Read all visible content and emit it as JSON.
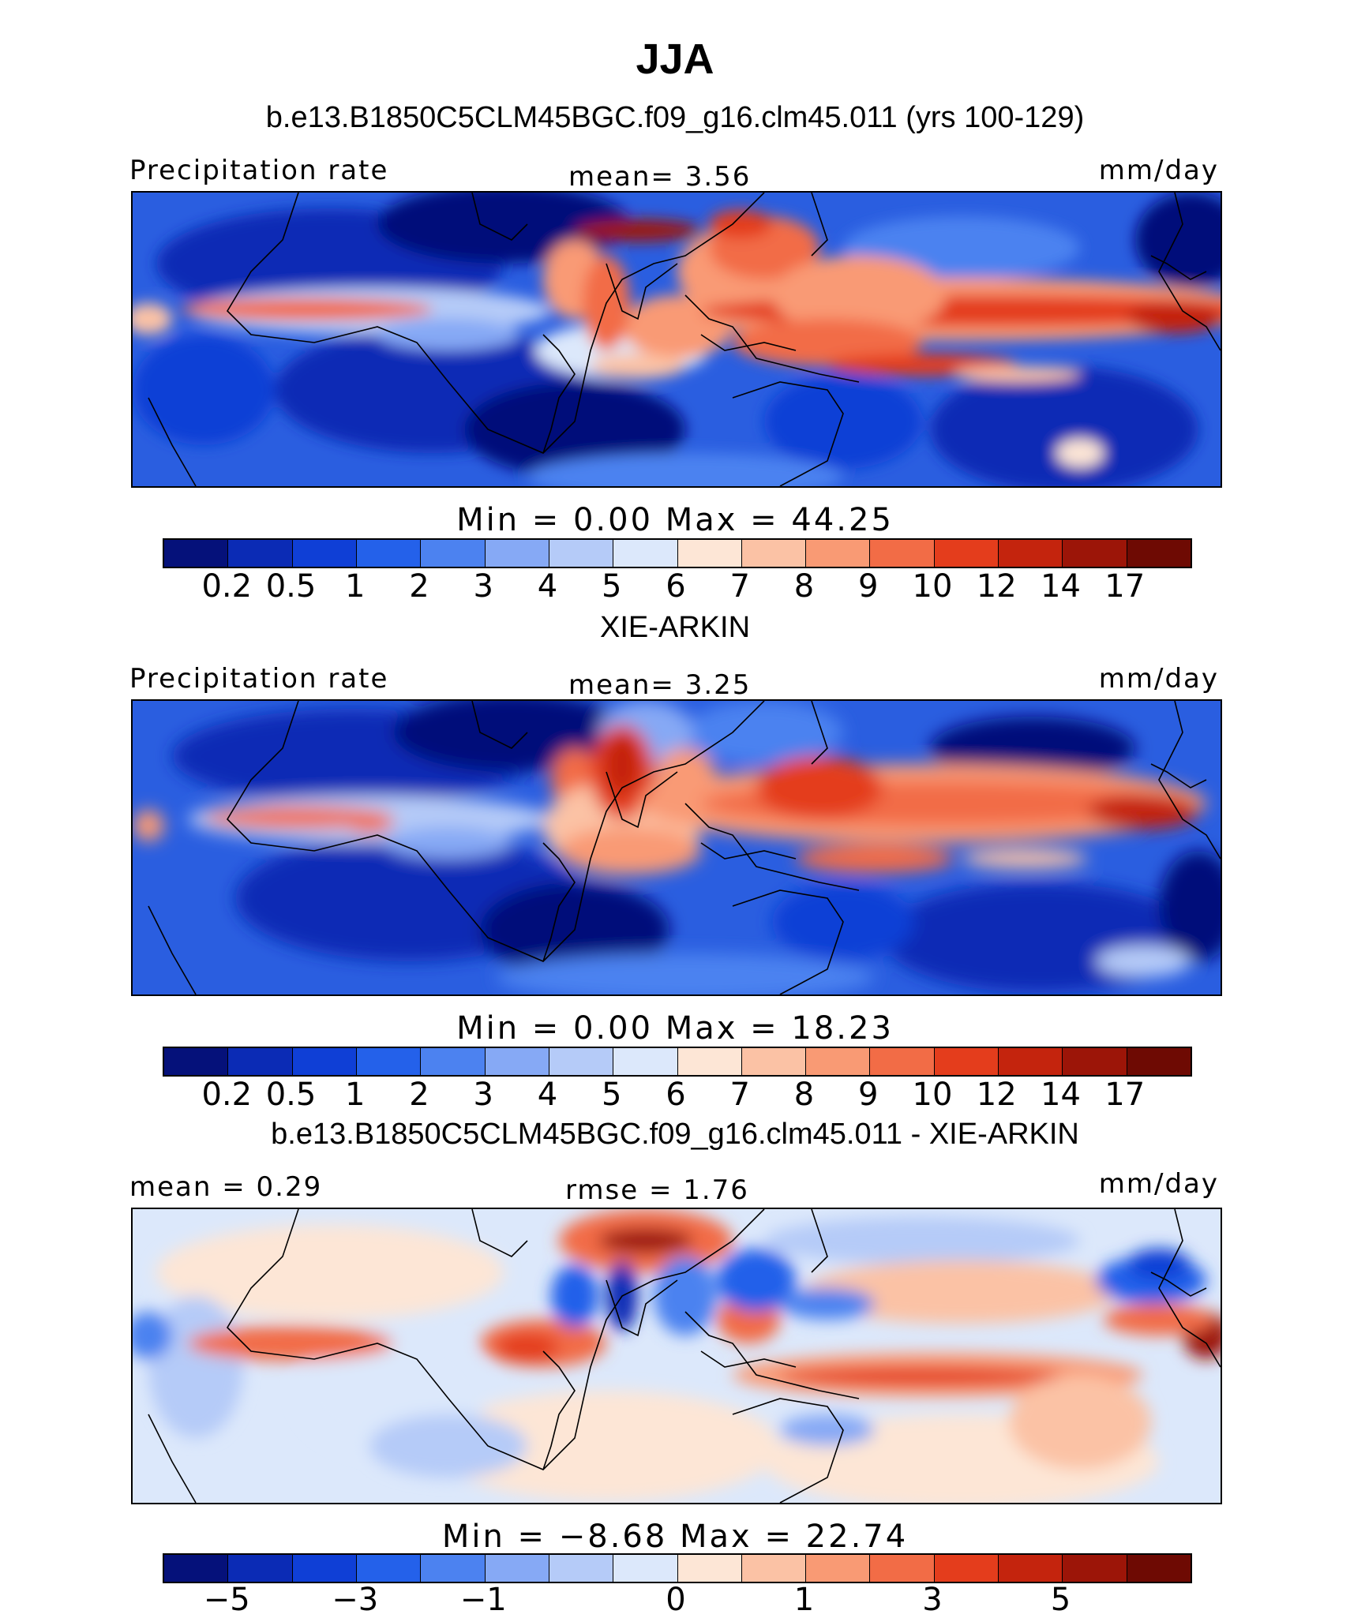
{
  "title": "JJA",
  "subtitle_model": "b.e13.B1850C5CLM45BGC.f09_g16.clm45.011 (yrs 100-129)",
  "panels": [
    {
      "left_label": "Precipitation rate",
      "center_label": "mean=    3.56",
      "right_label": "mm/day",
      "minmax": "Min  =     0.00  Max  =    44.25"
    },
    {
      "title": "XIE-ARKIN",
      "left_label": "Precipitation rate",
      "center_label": "mean=    3.25",
      "right_label": "mm/day",
      "minmax": "Min  =     0.00  Max  =    18.23"
    },
    {
      "title": "b.e13.B1850C5CLM45BGC.f09_g16.clm45.011 - XIE-ARKIN",
      "left_label": "mean  =    0.29",
      "center_label": "rmse  =    1.76",
      "right_label": "mm/day",
      "minmax": "Min  =   −8.68  Max  =    22.74"
    }
  ],
  "colorbar_colors": [
    "#05117a",
    "#0b2bb5",
    "#0f3fd6",
    "#2461ea",
    "#4c82f0",
    "#86a9f5",
    "#b5cbf8",
    "#dce8fb",
    "#fde6d6",
    "#fbc2a5",
    "#f99a74",
    "#f26c46",
    "#e43d1c",
    "#c4240d",
    "#9c1508",
    "#6e0a03"
  ],
  "colorbar_precip_ticks": [
    "0.2",
    "0.5",
    "1",
    "2",
    "3",
    "4",
    "5",
    "6",
    "7",
    "8",
    "9",
    "10",
    "12",
    "14",
    "17"
  ],
  "colorbar_diff_ticks": [
    {
      "label": "−5",
      "boundary": 1
    },
    {
      "label": "−3",
      "boundary": 3
    },
    {
      "label": "−1",
      "boundary": 5
    },
    {
      "label": "0",
      "boundary": 8
    },
    {
      "label": "1",
      "boundary": 10
    },
    {
      "label": "3",
      "boundary": 12
    },
    {
      "label": "5",
      "boundary": 14
    }
  ]
}
